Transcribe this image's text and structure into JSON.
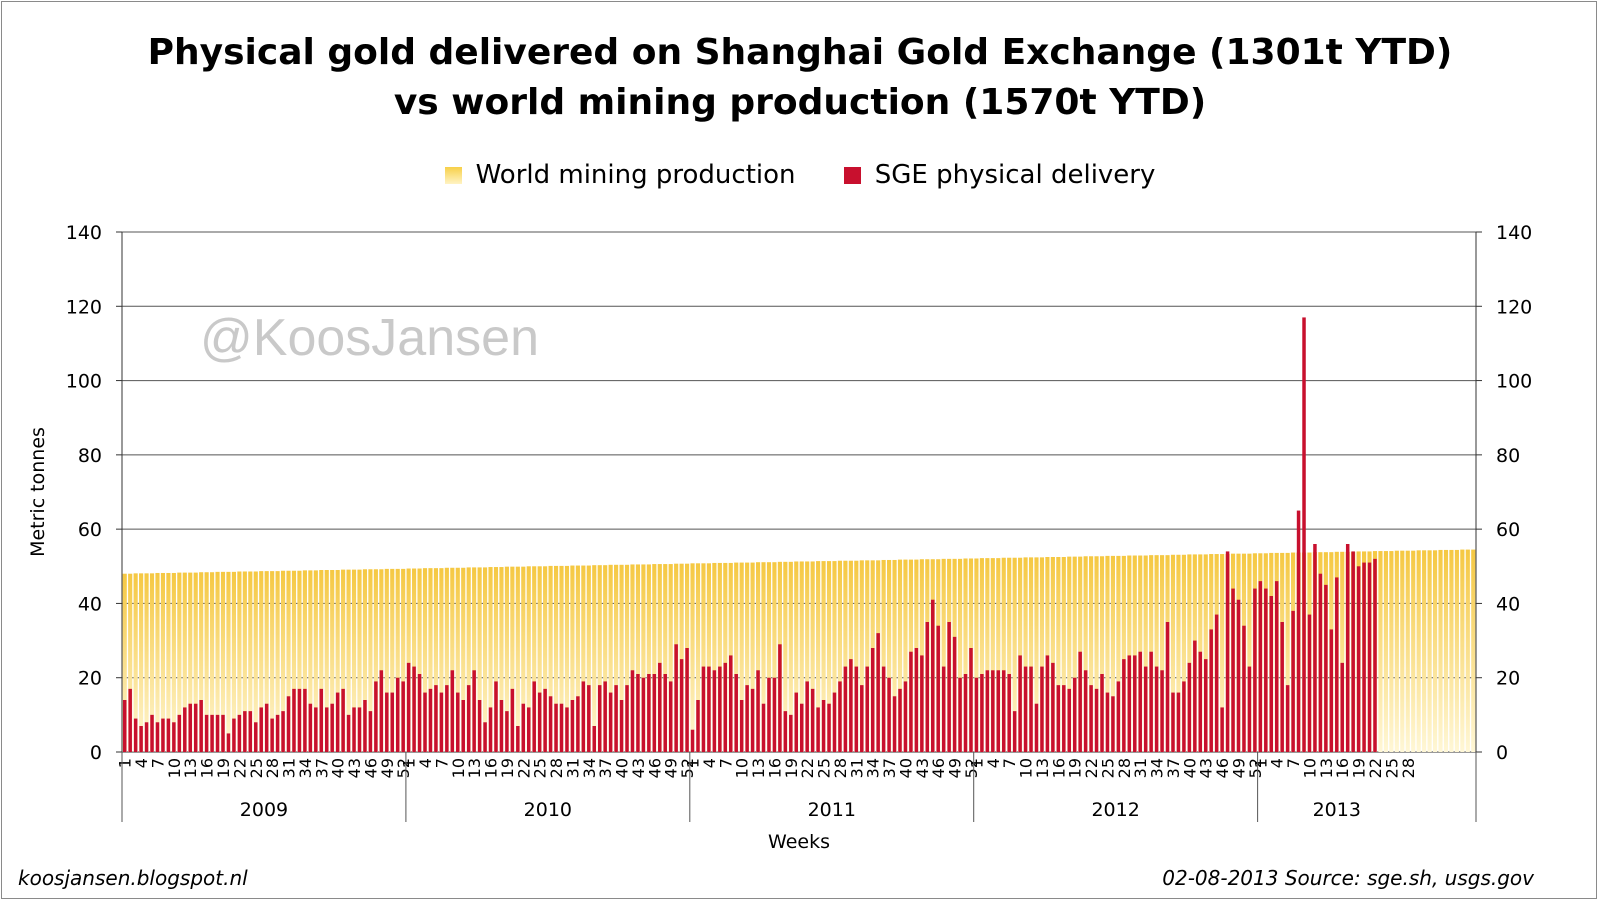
{
  "chart_data": {
    "type": "bar",
    "title_lines": [
      "Physical gold delivered on Shanghai Gold Exchange (1301t YTD)",
      "vs world mining production (1570t YTD)"
    ],
    "ylabel": "Metric tonnes",
    "xlabel": "Weeks",
    "ylim": [
      0,
      140
    ],
    "yticks": [
      0,
      20,
      40,
      60,
      80,
      100,
      120,
      140
    ],
    "grid": true,
    "legend_position": "top",
    "overlap": true,
    "colors": {
      "mining": "#f5c842",
      "sge": "#c8102e",
      "grid": "#555555"
    },
    "years": [
      {
        "label": "2009",
        "weeks": 52
      },
      {
        "label": "2010",
        "weeks": 52
      },
      {
        "label": "2011",
        "weeks": 52
      },
      {
        "label": "2012",
        "weeks": 52
      },
      {
        "label": "2013",
        "weeks": 29
      }
    ],
    "tick_label_step": 3,
    "series": [
      {
        "name": "World mining production",
        "values": [
          48.0,
          48.0,
          48.1,
          48.1,
          48.1,
          48.1,
          48.2,
          48.2,
          48.2,
          48.2,
          48.3,
          48.3,
          48.3,
          48.3,
          48.4,
          48.4,
          48.4,
          48.5,
          48.5,
          48.5,
          48.5,
          48.6,
          48.6,
          48.6,
          48.6,
          48.7,
          48.7,
          48.7,
          48.7,
          48.8,
          48.8,
          48.8,
          48.8,
          48.9,
          48.9,
          48.9,
          49.0,
          49.0,
          49.0,
          49.0,
          49.1,
          49.1,
          49.1,
          49.1,
          49.2,
          49.2,
          49.2,
          49.2,
          49.3,
          49.3,
          49.3,
          49.3,
          49.4,
          49.4,
          49.4,
          49.5,
          49.5,
          49.5,
          49.5,
          49.6,
          49.6,
          49.6,
          49.6,
          49.7,
          49.7,
          49.7,
          49.7,
          49.8,
          49.8,
          49.8,
          49.9,
          49.9,
          49.9,
          49.9,
          50.0,
          50.0,
          50.0,
          50.0,
          50.1,
          50.1,
          50.1,
          50.1,
          50.2,
          50.2,
          50.2,
          50.2,
          50.3,
          50.3,
          50.3,
          50.4,
          50.4,
          50.4,
          50.4,
          50.5,
          50.5,
          50.5,
          50.5,
          50.6,
          50.6,
          50.6,
          50.6,
          50.7,
          50.7,
          50.7,
          50.8,
          50.8,
          50.8,
          50.8,
          50.9,
          50.9,
          50.9,
          50.9,
          51.0,
          51.0,
          51.0,
          51.0,
          51.1,
          51.1,
          51.1,
          51.1,
          51.2,
          51.2,
          51.2,
          51.3,
          51.3,
          51.3,
          51.3,
          51.4,
          51.4,
          51.4,
          51.4,
          51.5,
          51.5,
          51.5,
          51.5,
          51.6,
          51.6,
          51.6,
          51.6,
          51.7,
          51.7,
          51.7,
          51.8,
          51.8,
          51.8,
          51.8,
          51.9,
          51.9,
          51.9,
          51.9,
          52.0,
          52.0,
          52.0,
          52.0,
          52.1,
          52.1,
          52.1,
          52.2,
          52.2,
          52.2,
          52.2,
          52.3,
          52.3,
          52.3,
          52.3,
          52.4,
          52.4,
          52.4,
          52.4,
          52.5,
          52.5,
          52.5,
          52.5,
          52.6,
          52.6,
          52.6,
          52.7,
          52.7,
          52.7,
          52.7,
          52.8,
          52.8,
          52.8,
          52.8,
          52.9,
          52.9,
          52.9,
          52.9,
          53.0,
          53.0,
          53.0,
          53.0,
          53.1,
          53.1,
          53.1,
          53.2,
          53.2,
          53.2,
          53.2,
          53.3,
          53.3,
          53.3,
          53.3,
          53.4,
          53.4,
          53.4,
          53.4,
          53.5,
          53.5,
          53.5,
          53.6,
          53.6,
          53.6,
          53.6,
          53.7,
          53.7,
          53.7,
          53.7,
          53.8,
          53.8,
          53.8,
          53.8,
          53.9,
          53.9,
          53.9,
          53.9,
          54.0,
          54.0,
          54.0,
          54.1,
          54.1,
          54.1,
          54.1,
          54.2,
          54.2,
          54.2,
          54.2,
          54.3,
          54.3,
          54.3,
          54.3,
          54.4,
          54.4,
          54.4,
          54.4,
          54.5,
          54.5,
          54.5
        ]
      },
      {
        "name": "SGE physical delivery",
        "values": [
          14,
          17,
          9,
          7,
          8,
          10,
          8,
          9,
          9,
          8,
          10,
          12,
          13,
          13,
          14,
          10,
          10,
          10,
          10,
          5,
          9,
          10,
          11,
          11,
          8,
          12,
          13,
          9,
          10,
          11,
          15,
          17,
          17,
          17,
          13,
          12,
          17,
          12,
          13,
          16,
          17,
          10,
          12,
          12,
          14,
          11,
          19,
          22,
          16,
          16,
          20,
          19,
          24,
          23,
          21,
          16,
          17,
          18,
          16,
          18,
          22,
          16,
          14,
          18,
          22,
          14,
          8,
          12,
          19,
          14,
          11,
          17,
          7,
          13,
          12,
          19,
          16,
          17,
          15,
          13,
          13,
          12,
          14,
          15,
          19,
          18,
          7,
          18,
          19,
          16,
          18,
          14,
          18,
          22,
          21,
          20,
          21,
          21,
          24,
          21,
          19,
          29,
          25,
          28,
          6,
          14,
          23,
          23,
          22,
          23,
          24,
          26,
          21,
          14,
          18,
          17,
          22,
          13,
          20,
          20,
          29,
          11,
          10,
          16,
          13,
          19,
          17,
          12,
          14,
          13,
          16,
          19,
          23,
          25,
          23,
          18,
          23,
          28,
          32,
          23,
          20,
          15,
          17,
          19,
          27,
          28,
          26,
          35,
          41,
          34,
          23,
          35,
          31,
          20,
          21,
          28,
          20,
          21,
          22,
          22,
          22,
          22,
          21,
          11,
          26,
          23,
          23,
          13,
          23,
          26,
          24,
          18,
          18,
          17,
          20,
          27,
          22,
          18,
          17,
          21,
          16,
          15,
          19,
          25,
          26,
          26,
          27,
          23,
          27,
          23,
          22,
          35,
          16,
          16,
          19,
          24,
          30,
          27,
          25,
          33,
          37,
          12,
          54,
          44,
          41,
          34,
          23,
          44,
          46,
          44,
          42,
          46,
          35,
          18,
          38,
          65,
          117,
          37,
          56,
          48,
          45,
          33,
          47,
          24,
          56,
          54,
          50,
          51,
          51,
          52
        ]
      }
    ]
  },
  "legend": {
    "mining": "World mining production",
    "sge": "SGE physical delivery"
  },
  "watermark": "@KoosJansen",
  "footer": {
    "left": "koosjansen.blogspot.nl",
    "right": "02-08-2013 Source: sge.sh, usgs.gov"
  }
}
